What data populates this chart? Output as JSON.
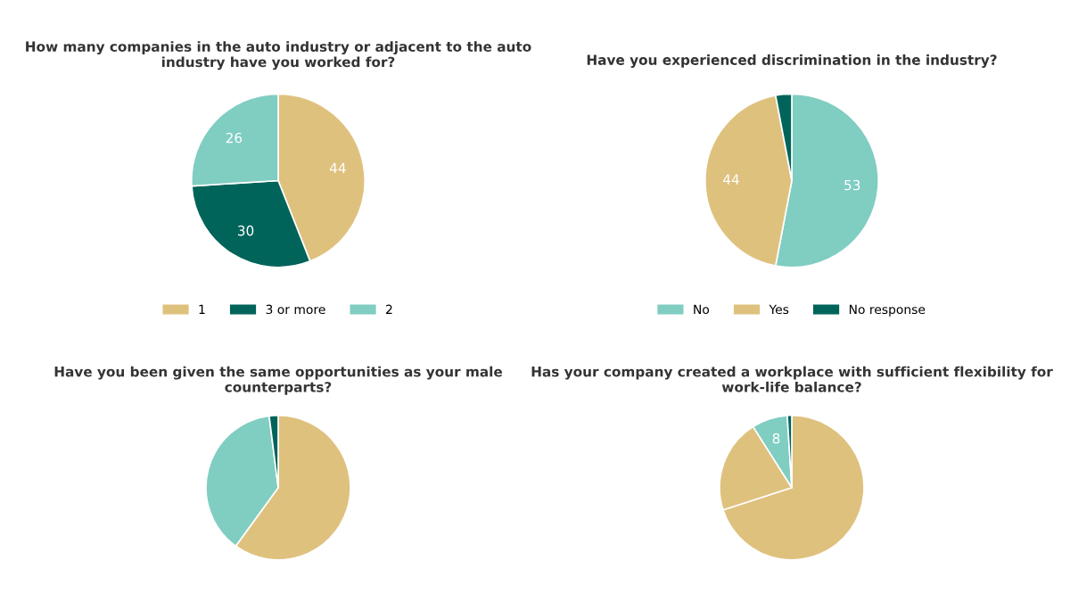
{
  "chart_data": [
    {
      "type": "pie",
      "title": "How many companies in the auto industry or adjacent to the auto industry have you worked for?",
      "categories": [
        "1",
        "3 or more",
        "2"
      ],
      "values": [
        44,
        30,
        26
      ],
      "colors": [
        "#dfc17e",
        "#00645a",
        "#80cdc1"
      ],
      "data_labels": true,
      "legend": "bottom"
    },
    {
      "type": "pie",
      "title": "Have you experienced discrimination in the industry?",
      "categories": [
        "No",
        "Yes",
        "No response"
      ],
      "values": [
        53,
        44,
        3
      ],
      "colors": [
        "#80cdc1",
        "#dfc17e",
        "#00645a"
      ],
      "value_labels": [
        "53",
        "44",
        null
      ],
      "legend": "bottom"
    },
    {
      "type": "pie",
      "title": "Have you been given the same opportunities as your male counterparts?",
      "categories": [
        null,
        null,
        null
      ],
      "values": [
        60,
        38,
        2
      ],
      "colors": [
        "#dfc17e",
        "#80cdc1",
        "#00645a"
      ]
    },
    {
      "type": "pie",
      "title": "Has your company created a workplace with sufficient flexibility for work-life balance?",
      "categories": [
        null,
        null,
        null,
        null
      ],
      "values": [
        70,
        21,
        8,
        1
      ],
      "colors": [
        "#dfc17e",
        "#dfc17e",
        "#80cdc1",
        "#00645a"
      ],
      "value_labels": [
        null,
        null,
        "8",
        null
      ]
    }
  ]
}
